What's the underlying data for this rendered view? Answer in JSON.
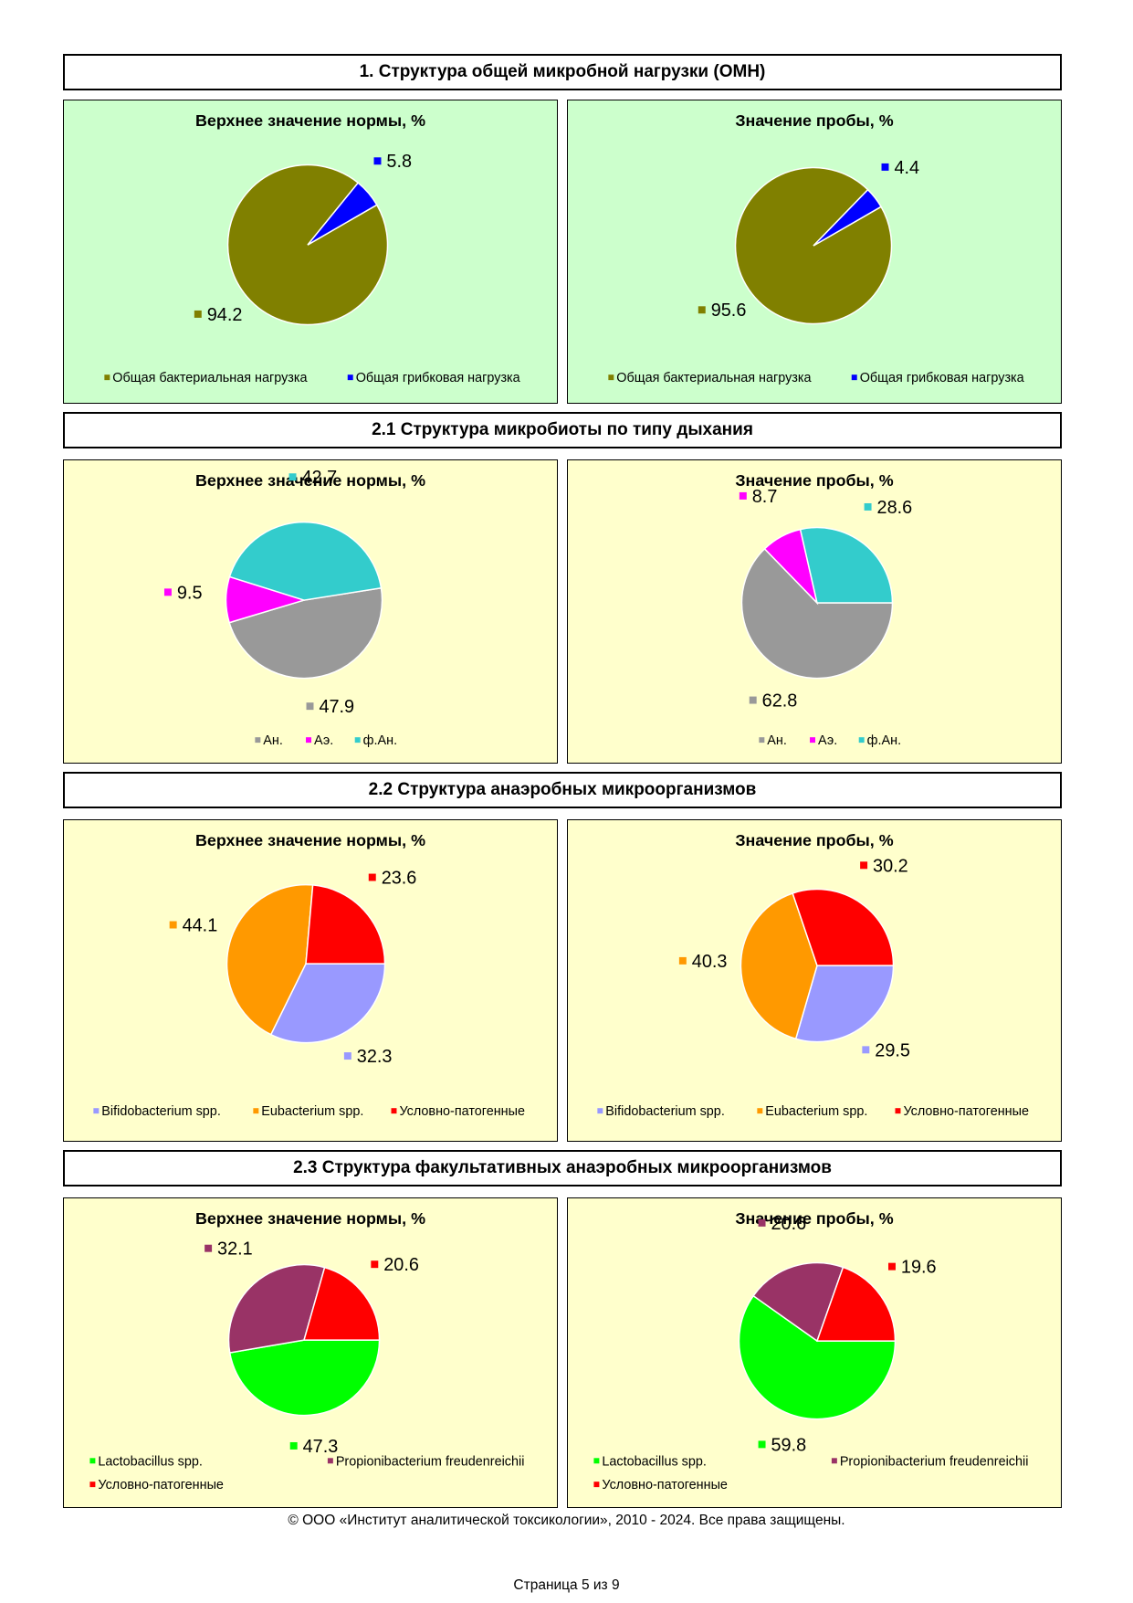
{
  "sections": [
    {
      "header": "1. Структура общей микробной нагрузки (ОМН)",
      "bg": "#ccffcc",
      "charts": [
        {
          "title": "Верхнее значение нормы, %",
          "type": "pie",
          "slices": [
            {
              "name": "Общая бактериальная нагрузка",
              "value": 94.2,
              "label": "94.2",
              "color": "#808000"
            },
            {
              "name": "Общая грибковая нагрузка",
              "value": 5.8,
              "label": "5.8",
              "color": "#0000ff"
            }
          ]
        },
        {
          "title": "Значение пробы, %",
          "type": "pie",
          "slices": [
            {
              "name": "Общая бактериальная нагрузка",
              "value": 95.6,
              "label": "95.6",
              "color": "#808000"
            },
            {
              "name": "Общая грибковая нагрузка",
              "value": 4.4,
              "label": "4.4",
              "color": "#0000ff"
            }
          ]
        }
      ]
    },
    {
      "header": "2.1 Структура микробиоты по типу дыхания",
      "bg": "#ffffcc",
      "charts": [
        {
          "title": "Верхнее значение нормы, %",
          "type": "pie",
          "slices": [
            {
              "name": "Ан.",
              "value": 47.9,
              "label": "47.9",
              "color": "#999999"
            },
            {
              "name": "Аэ.",
              "value": 9.5,
              "label": "9.5",
              "color": "#ff00ff"
            },
            {
              "name": "ф.Ан.",
              "value": 42.7,
              "label": "42.7",
              "color": "#33cccc"
            }
          ]
        },
        {
          "title": "Значение пробы, %",
          "type": "pie",
          "slices": [
            {
              "name": "Ан.",
              "value": 62.8,
              "label": "62.8",
              "color": "#999999"
            },
            {
              "name": "Аэ.",
              "value": 8.7,
              "label": "8.7",
              "color": "#ff00ff"
            },
            {
              "name": "ф.Ан.",
              "value": 28.6,
              "label": "28.6",
              "color": "#33cccc"
            }
          ]
        }
      ]
    },
    {
      "header": "2.2 Структура анаэробных микроорганизмов",
      "bg": "#ffffcc",
      "charts": [
        {
          "title": "Верхнее значение нормы, %",
          "type": "pie",
          "slices": [
            {
              "name": "Bifidobacterium spp.",
              "value": 32.3,
              "label": "32.3",
              "color": "#9999ff"
            },
            {
              "name": "Eubacterium spp.",
              "value": 44.1,
              "label": "44.1",
              "color": "#ff9900"
            },
            {
              "name": "Условно-патогенные",
              "value": 23.6,
              "label": "23.6",
              "color": "#ff0000"
            }
          ]
        },
        {
          "title": "Значение пробы, %",
          "type": "pie",
          "slices": [
            {
              "name": "Bifidobacterium spp.",
              "value": 29.5,
              "label": "29.5",
              "color": "#9999ff"
            },
            {
              "name": "Eubacterium spp.",
              "value": 40.3,
              "label": "40.3",
              "color": "#ff9900"
            },
            {
              "name": "Условно-патогенные",
              "value": 30.2,
              "label": "30.2",
              "color": "#ff0000"
            }
          ]
        }
      ]
    },
    {
      "header": "2.3 Структура факультативных анаэробных микроорганизмов",
      "bg": "#ffffcc",
      "charts": [
        {
          "title": "Верхнее значение нормы, %",
          "type": "pie",
          "slices": [
            {
              "name": "Lactobacillus spp.",
              "value": 47.3,
              "label": "47.3",
              "color": "#00ff00"
            },
            {
              "name": "Propionibacterium freudenreichii",
              "value": 32.1,
              "label": "32.1",
              "color": "#993366"
            },
            {
              "name": "Условно-патогенные",
              "value": 20.6,
              "label": "20.6",
              "color": "#ff0000"
            }
          ]
        },
        {
          "title": "Значение пробы, %",
          "type": "pie",
          "slices": [
            {
              "name": "Lactobacillus spp.",
              "value": 59.8,
              "label": "59.8",
              "color": "#00ff00"
            },
            {
              "name": "Propionibacterium freudenreichii",
              "value": 20.6,
              "label": "20.6",
              "color": "#993366"
            },
            {
              "name": "Условно-патогенные",
              "value": 19.6,
              "label": "19.6",
              "color": "#ff0000"
            }
          ]
        }
      ]
    }
  ],
  "footer": {
    "copyright": "© ООО «Институт аналитической токсикологии», 2010 - 2024. Все права защищены.",
    "page": "Страница 5 из 9"
  }
}
